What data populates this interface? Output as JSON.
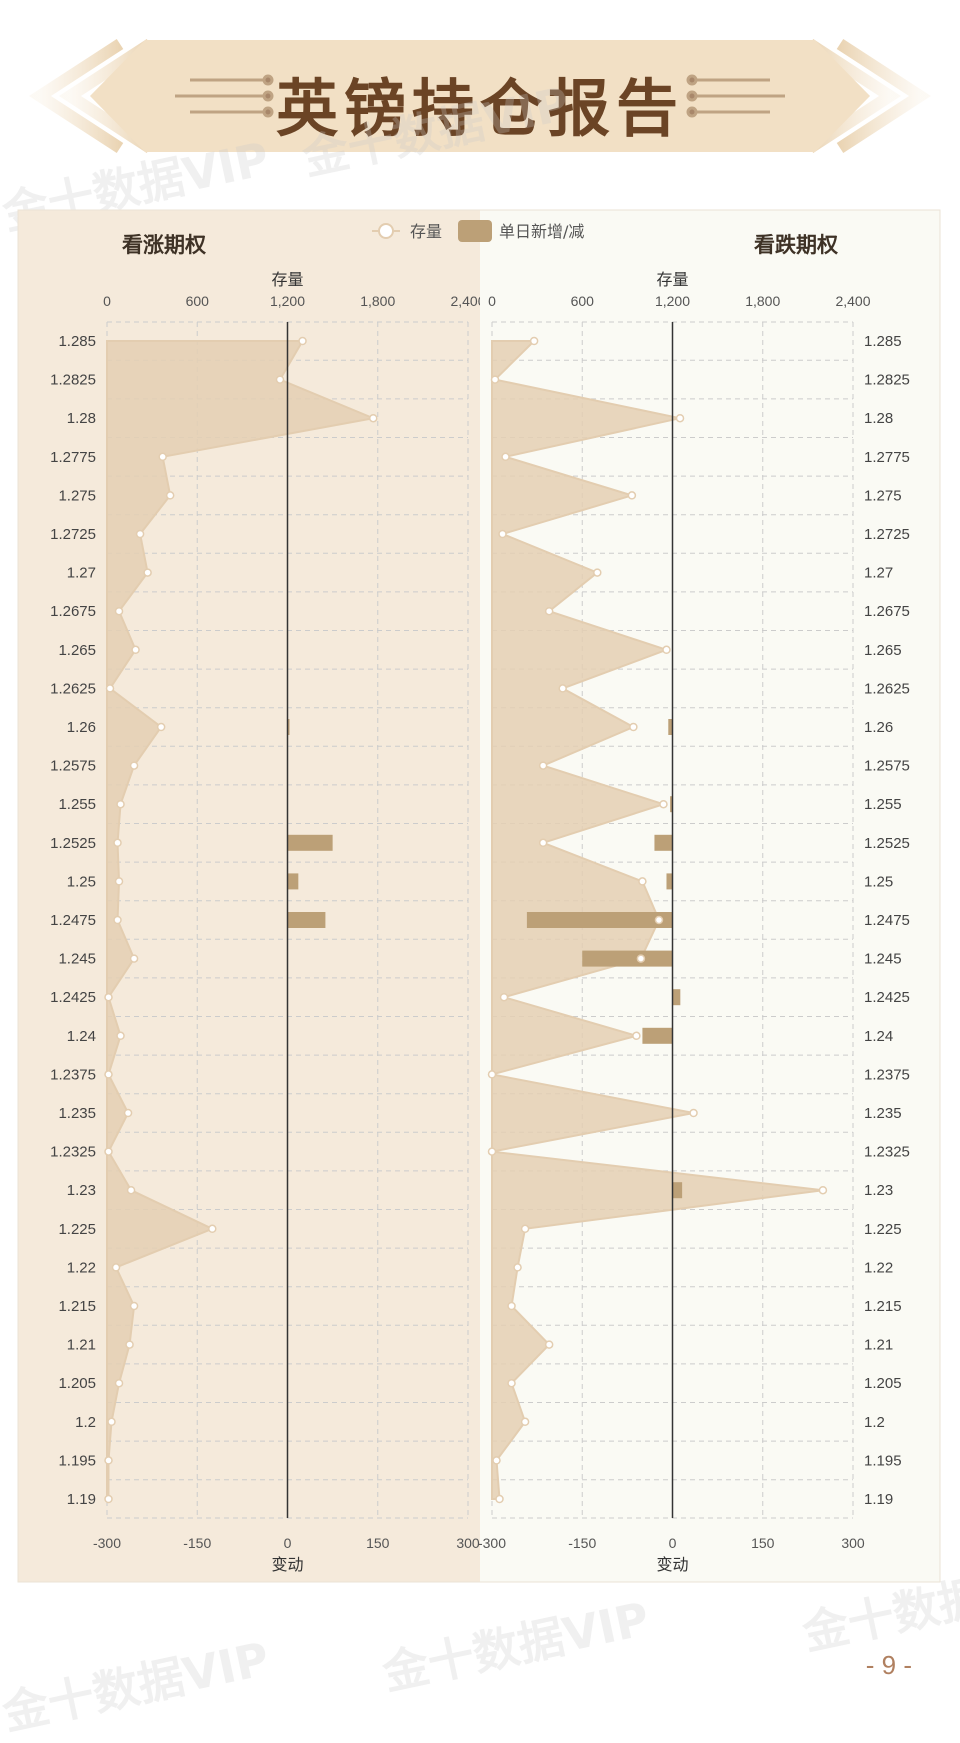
{
  "page": {
    "title": "英镑持仓报告",
    "page_number": "- 9 -",
    "watermark": "金十数据VIP"
  },
  "legend": {
    "stock": "存量",
    "change": "单日新增/减"
  },
  "colors": {
    "left_bg": "#f5eadb",
    "right_bg": "#fafaf4",
    "area_fill": "#e4cfb3",
    "area_stroke": "#e3cdb0",
    "bar": "#bca077",
    "title_text": "#6b4425",
    "banner_light": "#f2e0c5",
    "grid": "#cccccc"
  },
  "chart_data": {
    "type": "bar",
    "categories": [
      "1.285",
      "1.2825",
      "1.28",
      "1.2775",
      "1.275",
      "1.2725",
      "1.27",
      "1.2675",
      "1.265",
      "1.2625",
      "1.26",
      "1.2575",
      "1.255",
      "1.2525",
      "1.25",
      "1.2475",
      "1.245",
      "1.2425",
      "1.24",
      "1.2375",
      "1.235",
      "1.2325",
      "1.23",
      "1.225",
      "1.22",
      "1.215",
      "1.21",
      "1.205",
      "1.2",
      "1.195",
      "1.19"
    ],
    "stock_axis": {
      "label": "存量",
      "ticks": [
        "0",
        "600",
        "1,200",
        "1,800",
        "2,400"
      ],
      "range": [
        0,
        2400
      ]
    },
    "change_axis": {
      "label": "变动",
      "ticks": [
        "-300",
        "-150",
        "0",
        "150",
        "300"
      ],
      "range": [
        -300,
        300
      ]
    },
    "panels": [
      {
        "title": "看涨期权",
        "side": "left",
        "stock": [
          1300,
          1150,
          1770,
          370,
          420,
          220,
          270,
          80,
          190,
          20,
          360,
          180,
          90,
          70,
          80,
          70,
          180,
          10,
          90,
          10,
          140,
          10,
          160,
          700,
          60,
          180,
          150,
          80,
          30,
          10,
          10
        ],
        "change": [
          0,
          0,
          0,
          0,
          0,
          0,
          0,
          0,
          0,
          0,
          2,
          0,
          0,
          75,
          18,
          63,
          0,
          0,
          0,
          0,
          0,
          0,
          0,
          0,
          0,
          0,
          0,
          0,
          0,
          0,
          0
        ]
      },
      {
        "title": "看跌期权",
        "side": "right",
        "stock": [
          280,
          20,
          1250,
          90,
          930,
          70,
          700,
          380,
          1160,
          470,
          940,
          340,
          1140,
          340,
          1000,
          1110,
          990,
          80,
          960,
          0,
          1340,
          0,
          2200,
          220,
          170,
          130,
          380,
          130,
          220,
          30,
          50
        ],
        "change": [
          0,
          0,
          0,
          0,
          0,
          0,
          0,
          0,
          0,
          0,
          -7,
          0,
          -4,
          -30,
          -10,
          -242,
          -150,
          13,
          -50,
          0,
          0,
          0,
          16,
          0,
          0,
          0,
          0,
          0,
          0,
          0,
          0
        ]
      }
    ]
  }
}
